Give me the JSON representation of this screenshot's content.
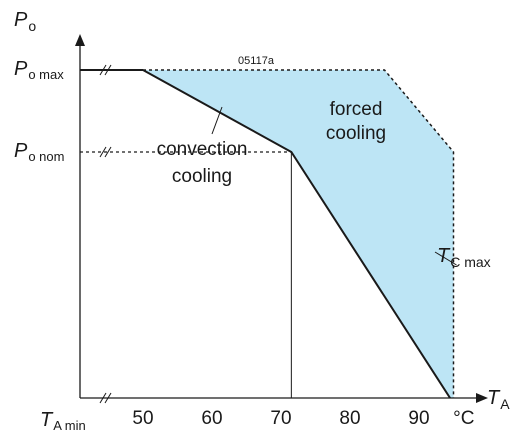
{
  "chart_data": {
    "type": "area",
    "figure_id": "05117a",
    "axes": {
      "y_label": {
        "symbol": "P",
        "subscript": "o"
      },
      "x_label": {
        "symbol": "T",
        "subscript": "A"
      },
      "x_ticks": [
        "50",
        "60",
        "70",
        "80",
        "90",
        "°C"
      ],
      "x_tick_values": [
        50,
        60,
        70,
        80,
        90
      ],
      "x_min_label": {
        "symbol": "T",
        "subscript": "A min"
      },
      "y_ticks": [
        {
          "symbol": "P",
          "subscript": "o max",
          "level": 1.0
        },
        {
          "symbol": "P",
          "subscript": "o nom",
          "level": 0.75
        }
      ],
      "xlim": [
        35,
        100
      ],
      "ylim": [
        0,
        1.13
      ]
    },
    "series": [
      {
        "name": "convection cooling",
        "points": [
          [
            50,
            1.0
          ],
          [
            71.5,
            0.75
          ],
          [
            94.5,
            0
          ]
        ]
      },
      {
        "name": "forced cooling",
        "points": [
          [
            50,
            1.0
          ],
          [
            85,
            1.0
          ],
          [
            95,
            0.75
          ],
          [
            95,
            0
          ]
        ]
      }
    ],
    "vertical_line": {
      "x": 95,
      "label": {
        "symbol": "T",
        "subscript": "C max"
      }
    },
    "reference_lines": {
      "nominal_point_x": 71.5
    },
    "annotations": {
      "convection": [
        "convection",
        "cooling"
      ],
      "forced": [
        "forced",
        "cooling"
      ]
    },
    "colors": {
      "fill": "#bde5f5",
      "line": "#1a1a1a"
    }
  }
}
